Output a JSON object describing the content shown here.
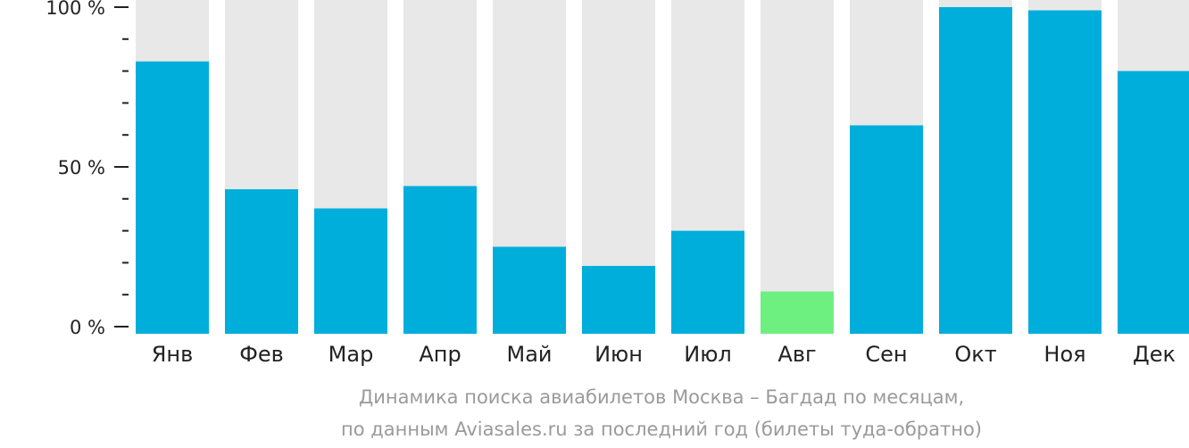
{
  "chart_data": {
    "type": "bar",
    "categories": [
      "Янв",
      "Фев",
      "Мар",
      "Апр",
      "Май",
      "Июн",
      "Июл",
      "Авг",
      "Сен",
      "Окт",
      "Ноя",
      "Дек"
    ],
    "values": [
      83,
      43,
      37,
      44,
      25,
      19,
      30,
      11,
      63,
      100,
      99,
      80
    ],
    "highlighted_category": "Авг",
    "ylim": [
      0,
      100
    ],
    "y_ticks": [
      {
        "value": 0,
        "label": "0 %"
      },
      {
        "value": 50,
        "label": "50 %"
      },
      {
        "value": 100,
        "label": "100 %"
      }
    ],
    "minor_tick_step": 10,
    "caption": [
      "Динамика поиска авиабилетов Москва – Багдад по месяцам,",
      "по данным Aviasales.ru за последний год (билеты туда-обратно)"
    ],
    "colors": {
      "bar": "#00aedc",
      "highlight": "#6ef081",
      "background_bar": "#e8e8e8",
      "axis": "#222222",
      "caption": "#9a9a9a"
    }
  }
}
